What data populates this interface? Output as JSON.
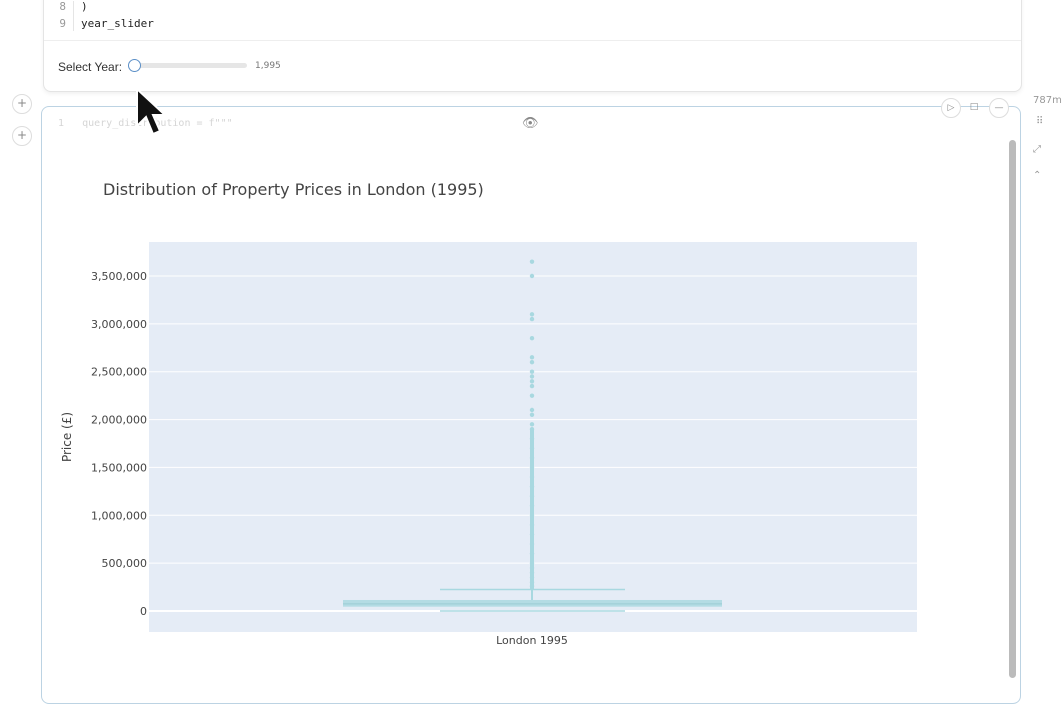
{
  "code": {
    "lines": [
      {
        "n": "8",
        "text": ")"
      },
      {
        "n": "9",
        "text": "year_slider"
      }
    ],
    "next_cell_ghost_line": {
      "n": "1",
      "text": "query_distribution = f\"\"\""
    }
  },
  "slider": {
    "label": "Select Year:",
    "value_text": "1,995",
    "fraction": 0.0
  },
  "side": {
    "memory_text": "787m"
  },
  "chart_data": {
    "type": "box",
    "title": "Distribution of Property Prices in London (1995)",
    "xlabel": "",
    "ylabel": "Price (£)",
    "categories": [
      "London 1995"
    ],
    "yticks": [
      0,
      500000,
      1000000,
      1500000,
      2000000,
      2500000,
      3000000,
      3500000
    ],
    "ytick_labels": [
      "0",
      "500,000",
      "1,000,000",
      "1,500,000",
      "2,000,000",
      "2,500,000",
      "3,000,000",
      "3,500,000"
    ],
    "ylim": [
      -200000,
      3850000
    ],
    "grid": true,
    "color": "#a8d8e0",
    "box": {
      "lower_fence": 0,
      "q1": 45000,
      "median": 75000,
      "q3": 115000,
      "upper_fence": 225000
    },
    "outliers": [
      3650000,
      3500000,
      3100000,
      3050000,
      2850000,
      2650000,
      2600000,
      2500000,
      2450000,
      2400000,
      2350000,
      2250000,
      2100000,
      2050000,
      1950000,
      1900000,
      1800000,
      1700000,
      1600000,
      1500000,
      1400000,
      1300000,
      1200000,
      1100000,
      1000000,
      900000,
      800000,
      700000,
      600000,
      500000,
      450000,
      400000,
      350000,
      300000,
      260000
    ]
  }
}
